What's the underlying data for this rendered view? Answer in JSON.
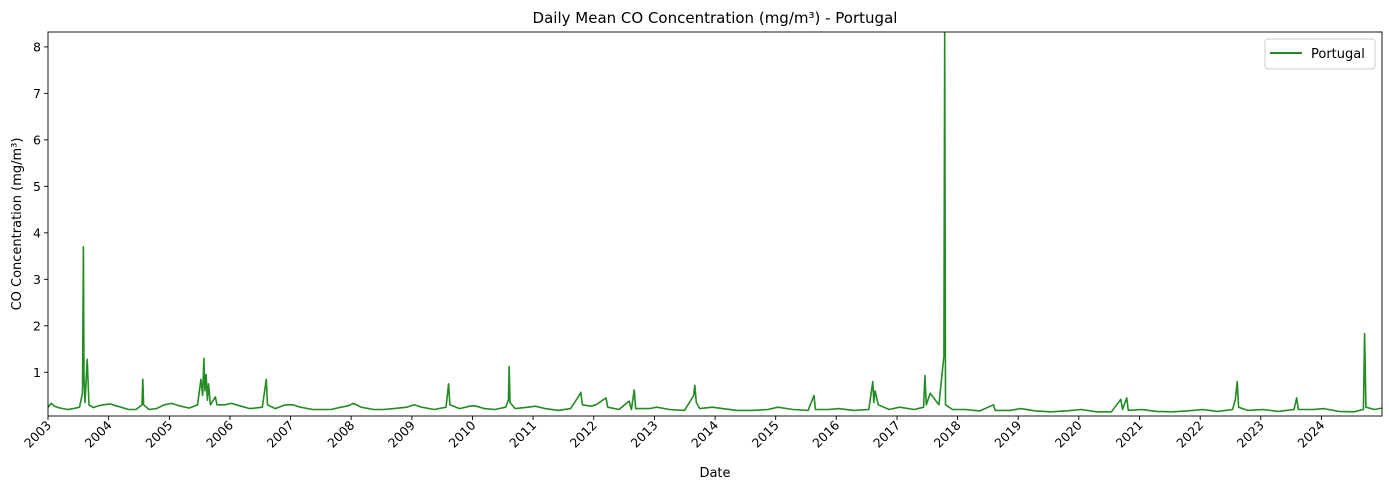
{
  "chart_data": {
    "type": "line",
    "title": "Daily Mean CO Concentration (mg/m³) - Portugal",
    "xlabel": "Date",
    "ylabel": "CO Concentration (mg/m³)",
    "x_range": [
      "2003-01-01",
      "2024-12-31"
    ],
    "ylim": [
      0.06,
      8.32
    ],
    "x_ticks": [
      "2003",
      "2004",
      "2005",
      "2006",
      "2007",
      "2008",
      "2009",
      "2010",
      "2011",
      "2012",
      "2013",
      "2014",
      "2015",
      "2016",
      "2017",
      "2018",
      "2019",
      "2020",
      "2021",
      "2022",
      "2023",
      "2024"
    ],
    "y_ticks": [
      1,
      2,
      3,
      4,
      5,
      6,
      7,
      8
    ],
    "grid": false,
    "legend_position": "top-right",
    "series": [
      {
        "name": "Portugal",
        "color": "#228b22",
        "points": [
          [
            "2003-01-01",
            0.25
          ],
          [
            "2003-01-20",
            0.33
          ],
          [
            "2003-02-10",
            0.27
          ],
          [
            "2003-03-05",
            0.24
          ],
          [
            "2003-04-01",
            0.22
          ],
          [
            "2003-05-01",
            0.2
          ],
          [
            "2003-06-01",
            0.22
          ],
          [
            "2003-07-10",
            0.25
          ],
          [
            "2003-07-28",
            0.55
          ],
          [
            "2003-08-02",
            3.7
          ],
          [
            "2003-08-06",
            0.9
          ],
          [
            "2003-08-12",
            0.35
          ],
          [
            "2003-08-25",
            1.28
          ],
          [
            "2003-09-05",
            0.3
          ],
          [
            "2003-10-01",
            0.24
          ],
          [
            "2003-11-01",
            0.28
          ],
          [
            "2003-12-01",
            0.3
          ],
          [
            "2004-01-10",
            0.32
          ],
          [
            "2004-02-15",
            0.28
          ],
          [
            "2004-03-15",
            0.25
          ],
          [
            "2004-05-01",
            0.2
          ],
          [
            "2004-06-15",
            0.2
          ],
          [
            "2004-07-20",
            0.3
          ],
          [
            "2004-07-25",
            0.85
          ],
          [
            "2004-07-30",
            0.3
          ],
          [
            "2004-09-01",
            0.2
          ],
          [
            "2004-10-15",
            0.22
          ],
          [
            "2004-12-01",
            0.3
          ],
          [
            "2005-01-15",
            0.33
          ],
          [
            "2005-03-01",
            0.28
          ],
          [
            "2005-05-01",
            0.23
          ],
          [
            "2005-06-20",
            0.3
          ],
          [
            "2005-07-10",
            0.85
          ],
          [
            "2005-07-20",
            0.5
          ],
          [
            "2005-07-28",
            1.3
          ],
          [
            "2005-08-03",
            0.6
          ],
          [
            "2005-08-10",
            0.95
          ],
          [
            "2005-08-18",
            0.4
          ],
          [
            "2005-08-25",
            0.75
          ],
          [
            "2005-09-05",
            0.3
          ],
          [
            "2005-10-05",
            0.47
          ],
          [
            "2005-10-15",
            0.3
          ],
          [
            "2005-12-01",
            0.3
          ],
          [
            "2006-01-10",
            0.33
          ],
          [
            "2006-03-01",
            0.28
          ],
          [
            "2006-05-01",
            0.22
          ],
          [
            "2006-07-15",
            0.25
          ],
          [
            "2006-08-08",
            0.85
          ],
          [
            "2006-08-15",
            0.3
          ],
          [
            "2006-10-01",
            0.22
          ],
          [
            "2006-12-01",
            0.3
          ],
          [
            "2007-01-15",
            0.3
          ],
          [
            "2007-03-01",
            0.25
          ],
          [
            "2007-05-15",
            0.2
          ],
          [
            "2007-07-15",
            0.2
          ],
          [
            "2007-09-01",
            0.2
          ],
          [
            "2007-11-01",
            0.25
          ],
          [
            "2007-12-15",
            0.28
          ],
          [
            "2008-01-15",
            0.33
          ],
          [
            "2008-03-01",
            0.25
          ],
          [
            "2008-05-15",
            0.2
          ],
          [
            "2008-07-15",
            0.2
          ],
          [
            "2008-09-15",
            0.22
          ],
          [
            "2008-12-01",
            0.25
          ],
          [
            "2009-01-15",
            0.3
          ],
          [
            "2009-03-01",
            0.25
          ],
          [
            "2009-05-15",
            0.2
          ],
          [
            "2009-07-25",
            0.25
          ],
          [
            "2009-08-10",
            0.75
          ],
          [
            "2009-08-18",
            0.3
          ],
          [
            "2009-10-15",
            0.22
          ],
          [
            "2009-12-15",
            0.27
          ],
          [
            "2010-01-15",
            0.28
          ],
          [
            "2010-03-15",
            0.22
          ],
          [
            "2010-05-15",
            0.2
          ],
          [
            "2010-07-20",
            0.25
          ],
          [
            "2010-08-05",
            0.4
          ],
          [
            "2010-08-10",
            1.12
          ],
          [
            "2010-08-15",
            0.35
          ],
          [
            "2010-09-15",
            0.22
          ],
          [
            "2010-12-01",
            0.25
          ],
          [
            "2011-01-15",
            0.27
          ],
          [
            "2011-03-15",
            0.22
          ],
          [
            "2011-06-01",
            0.18
          ],
          [
            "2011-08-15",
            0.22
          ],
          [
            "2011-10-05",
            0.5
          ],
          [
            "2011-10-15",
            0.57
          ],
          [
            "2011-10-25",
            0.3
          ],
          [
            "2011-12-15",
            0.27
          ],
          [
            "2012-01-15",
            0.3
          ],
          [
            "2012-03-15",
            0.45
          ],
          [
            "2012-03-25",
            0.25
          ],
          [
            "2012-06-01",
            0.2
          ],
          [
            "2012-08-01",
            0.38
          ],
          [
            "2012-08-15",
            0.2
          ],
          [
            "2012-09-01",
            0.62
          ],
          [
            "2012-09-10",
            0.22
          ],
          [
            "2012-12-01",
            0.22
          ],
          [
            "2013-01-15",
            0.25
          ],
          [
            "2013-04-01",
            0.2
          ],
          [
            "2013-07-01",
            0.18
          ],
          [
            "2013-08-25",
            0.5
          ],
          [
            "2013-09-01",
            0.72
          ],
          [
            "2013-09-10",
            0.35
          ],
          [
            "2013-10-01",
            0.22
          ],
          [
            "2013-12-15",
            0.25
          ],
          [
            "2014-02-15",
            0.22
          ],
          [
            "2014-05-15",
            0.18
          ],
          [
            "2014-08-15",
            0.18
          ],
          [
            "2014-11-15",
            0.2
          ],
          [
            "2015-01-15",
            0.25
          ],
          [
            "2015-04-15",
            0.2
          ],
          [
            "2015-07-15",
            0.18
          ],
          [
            "2015-08-20",
            0.5
          ],
          [
            "2015-08-28",
            0.2
          ],
          [
            "2015-11-15",
            0.2
          ],
          [
            "2016-01-15",
            0.22
          ],
          [
            "2016-04-15",
            0.18
          ],
          [
            "2016-07-15",
            0.2
          ],
          [
            "2016-08-08",
            0.8
          ],
          [
            "2016-08-14",
            0.35
          ],
          [
            "2016-08-22",
            0.6
          ],
          [
            "2016-09-10",
            0.3
          ],
          [
            "2016-11-15",
            0.2
          ],
          [
            "2017-01-15",
            0.25
          ],
          [
            "2017-04-15",
            0.2
          ],
          [
            "2017-06-10",
            0.25
          ],
          [
            "2017-06-18",
            0.93
          ],
          [
            "2017-06-26",
            0.3
          ],
          [
            "2017-07-20",
            0.55
          ],
          [
            "2017-08-10",
            0.45
          ],
          [
            "2017-09-10",
            0.3
          ],
          [
            "2017-10-10",
            1.35
          ],
          [
            "2017-10-15",
            8.3
          ],
          [
            "2017-10-20",
            0.3
          ],
          [
            "2017-12-01",
            0.2
          ],
          [
            "2018-02-15",
            0.2
          ],
          [
            "2018-05-15",
            0.17
          ],
          [
            "2018-08-05",
            0.3
          ],
          [
            "2018-08-15",
            0.18
          ],
          [
            "2018-11-15",
            0.18
          ],
          [
            "2019-01-15",
            0.22
          ],
          [
            "2019-04-15",
            0.17
          ],
          [
            "2019-07-15",
            0.15
          ],
          [
            "2019-10-15",
            0.17
          ],
          [
            "2020-01-15",
            0.2
          ],
          [
            "2020-04-15",
            0.15
          ],
          [
            "2020-07-15",
            0.15
          ],
          [
            "2020-09-10",
            0.42
          ],
          [
            "2020-09-20",
            0.2
          ],
          [
            "2020-10-15",
            0.45
          ],
          [
            "2020-10-25",
            0.18
          ],
          [
            "2021-01-15",
            0.2
          ],
          [
            "2021-04-15",
            0.16
          ],
          [
            "2021-07-15",
            0.15
          ],
          [
            "2021-10-15",
            0.17
          ],
          [
            "2022-01-15",
            0.2
          ],
          [
            "2022-04-15",
            0.16
          ],
          [
            "2022-07-15",
            0.2
          ],
          [
            "2022-08-01",
            0.42
          ],
          [
            "2022-08-12",
            0.8
          ],
          [
            "2022-08-20",
            0.25
          ],
          [
            "2022-10-15",
            0.18
          ],
          [
            "2023-01-15",
            0.2
          ],
          [
            "2023-04-15",
            0.16
          ],
          [
            "2023-07-20",
            0.2
          ],
          [
            "2023-08-05",
            0.45
          ],
          [
            "2023-08-15",
            0.2
          ],
          [
            "2023-11-15",
            0.2
          ],
          [
            "2024-01-15",
            0.22
          ],
          [
            "2024-04-15",
            0.16
          ],
          [
            "2024-07-15",
            0.15
          ],
          [
            "2024-09-10",
            0.2
          ],
          [
            "2024-09-17",
            1.83
          ],
          [
            "2024-09-25",
            0.25
          ],
          [
            "2024-11-15",
            0.2
          ],
          [
            "2024-12-31",
            0.23
          ]
        ]
      }
    ]
  }
}
